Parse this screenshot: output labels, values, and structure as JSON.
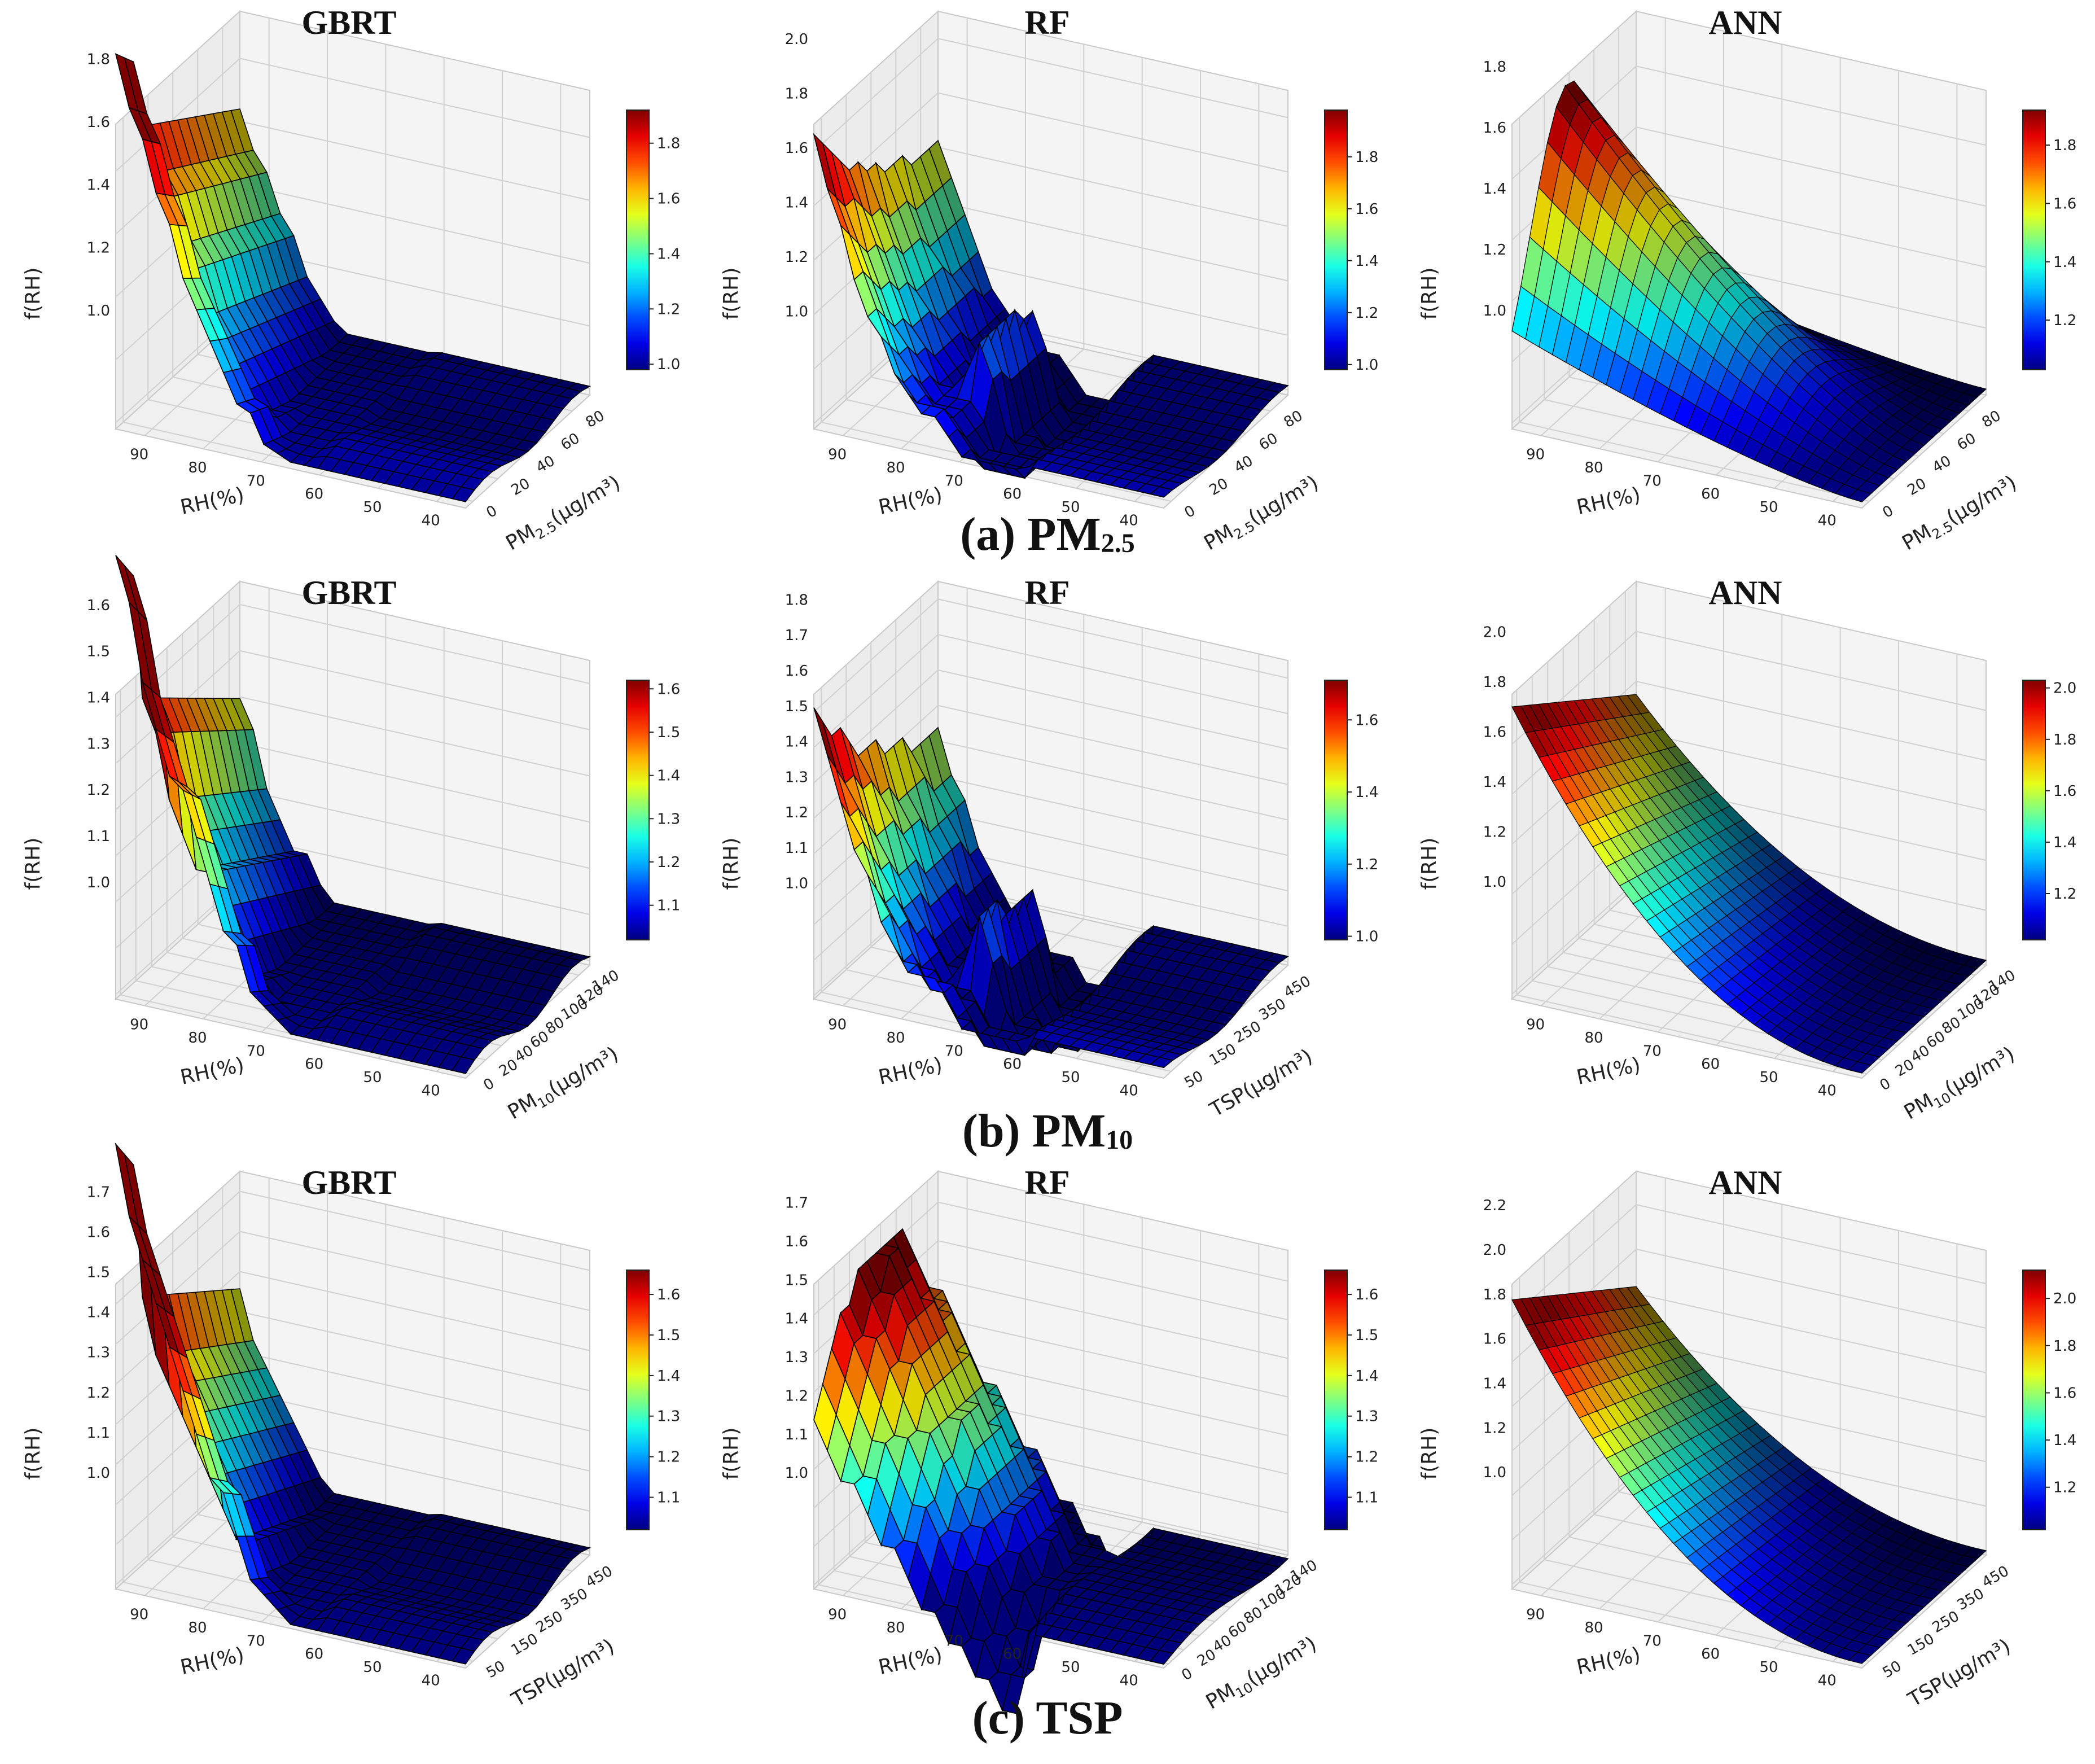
{
  "colormap": "jet",
  "rows": [
    {
      "caption_main": "(a) PM",
      "caption_sub": "2.5",
      "panels": [
        {
          "title": "GBRT",
          "zlabel": "f(RH)",
          "xlabel": "RH(%)",
          "ylabel": "PM",
          "ylabel_sub": "2.5",
          "ylabel_unit": "(μg/m³)",
          "zticks": [
            "1.0",
            "1.2",
            "1.4",
            "1.6",
            "1.8"
          ],
          "zlim": [
            0.98,
            1.95
          ],
          "xticks": [
            "90",
            "80",
            "70",
            "60",
            "50",
            "40"
          ],
          "yticks": [
            "0",
            "20",
            "40",
            "60",
            "80"
          ],
          "cbar_ticks": [
            "1.0",
            "1.2",
            "1.4",
            "1.6",
            "1.8"
          ],
          "cbar_lim": [
            0.98,
            1.92
          ],
          "surface": {
            "model": "gbrt",
            "peak": 1.93,
            "edge": 1.35
          }
        },
        {
          "title": "RF",
          "zlabel": "f(RH)",
          "xlabel": "RH(%)",
          "ylabel": "PM",
          "ylabel_sub": "2.5",
          "ylabel_unit": "(μg/m³)",
          "zticks": [
            "1.0",
            "1.2",
            "1.4",
            "1.6",
            "1.8",
            "2.0"
          ],
          "zlim": [
            0.98,
            2.1
          ],
          "xticks": [
            "90",
            "80",
            "70",
            "60",
            "50",
            "40"
          ],
          "yticks": [
            "0",
            "20",
            "40",
            "60",
            "80"
          ],
          "cbar_ticks": [
            "1.0",
            "1.2",
            "1.4",
            "1.6",
            "1.8"
          ],
          "cbar_lim": [
            0.98,
            1.98
          ],
          "surface": {
            "model": "rf",
            "peak": 2.05,
            "edge": 1.2
          }
        },
        {
          "title": "ANN",
          "zlabel": "f(RH)",
          "xlabel": "RH(%)",
          "ylabel": "PM",
          "ylabel_sub": "2.5",
          "ylabel_unit": "(μg/m³)",
          "zticks": [
            "1.0",
            "1.2",
            "1.4",
            "1.6",
            "1.8"
          ],
          "zlim": [
            0.98,
            1.98
          ],
          "xticks": [
            "90",
            "80",
            "70",
            "60",
            "50",
            "40"
          ],
          "yticks": [
            "0",
            "20",
            "40",
            "60",
            "80"
          ],
          "cbar_ticks": [
            "1.2",
            "1.4",
            "1.6",
            "1.8"
          ],
          "cbar_lim": [
            1.03,
            1.92
          ],
          "surface": {
            "model": "ann_hump",
            "peak": 1.95,
            "edge": 1.5
          }
        }
      ]
    },
    {
      "caption_main": "(b) PM",
      "caption_sub": "10",
      "panels": [
        {
          "title": "GBRT",
          "zlabel": "f(RH)",
          "xlabel": "RH(%)",
          "ylabel": "PM",
          "ylabel_sub": "10",
          "ylabel_unit": "(μg/m³)",
          "zticks": [
            "1.0",
            "1.1",
            "1.2",
            "1.3",
            "1.4",
            "1.5",
            "1.6"
          ],
          "zlim": [
            0.99,
            1.65
          ],
          "xticks": [
            "90",
            "80",
            "70",
            "60",
            "50",
            "40"
          ],
          "yticks": [
            "0",
            "20",
            "40",
            "60",
            "80",
            "100",
            "120",
            "140"
          ],
          "cbar_ticks": [
            "1.1",
            "1.2",
            "1.3",
            "1.4",
            "1.5",
            "1.6"
          ],
          "cbar_lim": [
            1.02,
            1.62
          ],
          "surface": {
            "model": "gbrt",
            "peak": 1.62,
            "edge": 1.44
          }
        },
        {
          "title": "RF",
          "zlabel": "f(RH)",
          "xlabel": "RH(%)",
          "ylabel": "TSP",
          "ylabel_sub": "",
          "ylabel_unit": "(μg/m³)",
          "zticks": [
            "1.0",
            "1.1",
            "1.2",
            "1.3",
            "1.4",
            "1.5",
            "1.6",
            "1.7",
            "1.8"
          ],
          "zlim": [
            0.99,
            1.85
          ],
          "xticks": [
            "90",
            "80",
            "70",
            "60",
            "50",
            "40"
          ],
          "yticks": [
            "50",
            "150",
            "250",
            "350",
            "450"
          ],
          "cbar_ticks": [
            "1.0",
            "1.2",
            "1.4",
            "1.6"
          ],
          "cbar_lim": [
            0.99,
            1.71
          ],
          "surface": {
            "model": "rf",
            "peak": 1.82,
            "edge": 1.7
          }
        },
        {
          "title": "ANN",
          "zlabel": "f(RH)",
          "xlabel": "RH(%)",
          "ylabel": "PM",
          "ylabel_sub": "10",
          "ylabel_unit": "(μg/m³)",
          "zticks": [
            "1.0",
            "1.2",
            "1.4",
            "1.6",
            "1.8",
            "2.0"
          ],
          "zlim": [
            0.98,
            2.2
          ],
          "xticks": [
            "90",
            "80",
            "70",
            "60",
            "50",
            "40"
          ],
          "yticks": [
            "0",
            "20",
            "40",
            "60",
            "80",
            "100",
            "120",
            "140"
          ],
          "cbar_ticks": [
            "1.2",
            "1.4",
            "1.6",
            "1.8",
            "2.0"
          ],
          "cbar_lim": [
            1.02,
            2.03
          ],
          "surface": {
            "model": "ann_decay",
            "peak": 2.15,
            "edge": 1.7
          }
        }
      ]
    },
    {
      "caption_main": "(c) TSP",
      "caption_sub": "",
      "panels": [
        {
          "title": "GBRT",
          "zlabel": "f(RH)",
          "xlabel": "RH(%)",
          "ylabel": "TSP",
          "ylabel_sub": "",
          "ylabel_unit": "(μg/m³)",
          "zticks": [
            "1.0",
            "1.1",
            "1.2",
            "1.3",
            "1.4",
            "1.5",
            "1.6",
            "1.7"
          ],
          "zlim": [
            0.99,
            1.75
          ],
          "xticks": [
            "90",
            "80",
            "70",
            "60",
            "50",
            "40"
          ],
          "yticks": [
            "50",
            "150",
            "250",
            "350",
            "450"
          ],
          "cbar_ticks": [
            "1.1",
            "1.2",
            "1.3",
            "1.4",
            "1.5",
            "1.6"
          ],
          "cbar_lim": [
            1.02,
            1.66
          ],
          "surface": {
            "model": "gbrt",
            "peak": 1.7,
            "edge": 1.55
          }
        },
        {
          "title": "RF",
          "zlabel": "f(RH)",
          "xlabel": "RH(%)",
          "ylabel": "PM",
          "ylabel_sub": "10",
          "ylabel_unit": "(μg/m³)",
          "zticks": [
            "1.0",
            "1.1",
            "1.2",
            "1.3",
            "1.4",
            "1.5",
            "1.6",
            "1.7"
          ],
          "zlim": [
            0.99,
            1.78
          ],
          "xticks": [
            "90",
            "80",
            "70",
            "60",
            "50",
            "40"
          ],
          "yticks": [
            "0",
            "20",
            "40",
            "60",
            "80",
            "100",
            "120",
            "140"
          ],
          "cbar_ticks": [
            "1.1",
            "1.2",
            "1.3",
            "1.4",
            "1.5",
            "1.6"
          ],
          "cbar_lim": [
            1.02,
            1.66
          ],
          "surface": {
            "model": "rf_wide",
            "peak": 1.75,
            "edge": 1.52
          }
        },
        {
          "title": "ANN",
          "zlabel": "f(RH)",
          "xlabel": "RH(%)",
          "ylabel": "TSP",
          "ylabel_sub": "",
          "ylabel_unit": "(μg/m³)",
          "zticks": [
            "1.0",
            "1.2",
            "1.4",
            "1.6",
            "1.8",
            "2.0",
            "2.2"
          ],
          "zlim": [
            0.98,
            2.35
          ],
          "xticks": [
            "90",
            "80",
            "70",
            "60",
            "50",
            "40"
          ],
          "yticks": [
            "50",
            "150",
            "250",
            "350",
            "450"
          ],
          "cbar_ticks": [
            "1.2",
            "1.4",
            "1.6",
            "1.8",
            "2.0"
          ],
          "cbar_lim": [
            1.02,
            2.12
          ],
          "surface": {
            "model": "ann_decay",
            "peak": 2.28,
            "edge": 1.85
          }
        }
      ]
    }
  ],
  "chart_data": [
    {
      "type": "surface3d",
      "title": "GBRT",
      "row": "(a) PM2.5",
      "xlabel": "RH(%)",
      "ylabel": "PM2.5(μg/m³)",
      "zlabel": "f(RH)",
      "x_range": [
        35,
        95
      ],
      "y_range": [
        0,
        90
      ],
      "z_range": [
        1.0,
        1.93
      ],
      "colorbar_ticks": [
        1.0,
        1.2,
        1.4,
        1.6,
        1.8
      ],
      "peak_f": 1.93,
      "peak_at_RH": 85
    },
    {
      "type": "surface3d",
      "title": "RF",
      "row": "(a) PM2.5",
      "xlabel": "RH(%)",
      "ylabel": "PM2.5(μg/m³)",
      "zlabel": "f(RH)",
      "x_range": [
        35,
        95
      ],
      "y_range": [
        0,
        90
      ],
      "z_range": [
        1.0,
        2.05
      ],
      "colorbar_ticks": [
        1.0,
        1.2,
        1.4,
        1.6,
        1.8
      ],
      "peak_f": 2.05,
      "peak_at_RH": 85
    },
    {
      "type": "surface3d",
      "title": "ANN",
      "row": "(a) PM2.5",
      "xlabel": "RH(%)",
      "ylabel": "PM2.5(μg/m³)",
      "zlabel": "f(RH)",
      "x_range": [
        35,
        95
      ],
      "y_range": [
        0,
        90
      ],
      "z_range": [
        1.0,
        1.95
      ],
      "colorbar_ticks": [
        1.2,
        1.4,
        1.6,
        1.8
      ],
      "peak_f": 1.95,
      "peak_at_RH": 90
    },
    {
      "type": "surface3d",
      "title": "GBRT",
      "row": "(b) PM10",
      "xlabel": "RH(%)",
      "ylabel": "PM10(μg/m³)",
      "zlabel": "f(RH)",
      "x_range": [
        35,
        95
      ],
      "y_range": [
        0,
        150
      ],
      "z_range": [
        1.0,
        1.62
      ],
      "colorbar_ticks": [
        1.1,
        1.2,
        1.3,
        1.4,
        1.5,
        1.6
      ],
      "peak_f": 1.62,
      "peak_at_RH": 85
    },
    {
      "type": "surface3d",
      "title": "RF",
      "row": "(b) PM10",
      "xlabel": "RH(%)",
      "ylabel": "TSP(μg/m³)",
      "zlabel": "f(RH)",
      "x_range": [
        35,
        95
      ],
      "y_range": [
        50,
        500
      ],
      "z_range": [
        1.0,
        1.82
      ],
      "colorbar_ticks": [
        1.0,
        1.2,
        1.4,
        1.6
      ],
      "peak_f": 1.82,
      "peak_at_RH": 90
    },
    {
      "type": "surface3d",
      "title": "ANN",
      "row": "(b) PM10",
      "xlabel": "RH(%)",
      "ylabel": "PM10(μg/m³)",
      "zlabel": "f(RH)",
      "x_range": [
        35,
        95
      ],
      "y_range": [
        0,
        150
      ],
      "z_range": [
        1.0,
        2.15
      ],
      "colorbar_ticks": [
        1.2,
        1.4,
        1.6,
        1.8,
        2.0
      ],
      "peak_f": 2.15,
      "peak_at_RH": 95
    },
    {
      "type": "surface3d",
      "title": "GBRT",
      "row": "(c) TSP",
      "xlabel": "RH(%)",
      "ylabel": "TSP(μg/m³)",
      "zlabel": "f(RH)",
      "x_range": [
        35,
        95
      ],
      "y_range": [
        50,
        500
      ],
      "z_range": [
        1.0,
        1.7
      ],
      "colorbar_ticks": [
        1.1,
        1.2,
        1.3,
        1.4,
        1.5,
        1.6
      ],
      "peak_f": 1.7,
      "peak_at_RH": 90
    },
    {
      "type": "surface3d",
      "title": "RF",
      "row": "(c) TSP",
      "xlabel": "RH(%)",
      "ylabel": "PM10(μg/m³)",
      "zlabel": "f(RH)",
      "x_range": [
        35,
        95
      ],
      "y_range": [
        0,
        150
      ],
      "z_range": [
        1.0,
        1.75
      ],
      "colorbar_ticks": [
        1.1,
        1.2,
        1.3,
        1.4,
        1.5,
        1.6
      ],
      "peak_f": 1.75,
      "peak_at_RH": 88
    },
    {
      "type": "surface3d",
      "title": "ANN",
      "row": "(c) TSP",
      "xlabel": "RH(%)",
      "ylabel": "TSP(μg/m³)",
      "zlabel": "f(RH)",
      "x_range": [
        35,
        95
      ],
      "y_range": [
        50,
        500
      ],
      "z_range": [
        1.0,
        2.28
      ],
      "colorbar_ticks": [
        1.2,
        1.4,
        1.6,
        1.8,
        2.0
      ],
      "peak_f": 2.28,
      "peak_at_RH": 95
    }
  ]
}
